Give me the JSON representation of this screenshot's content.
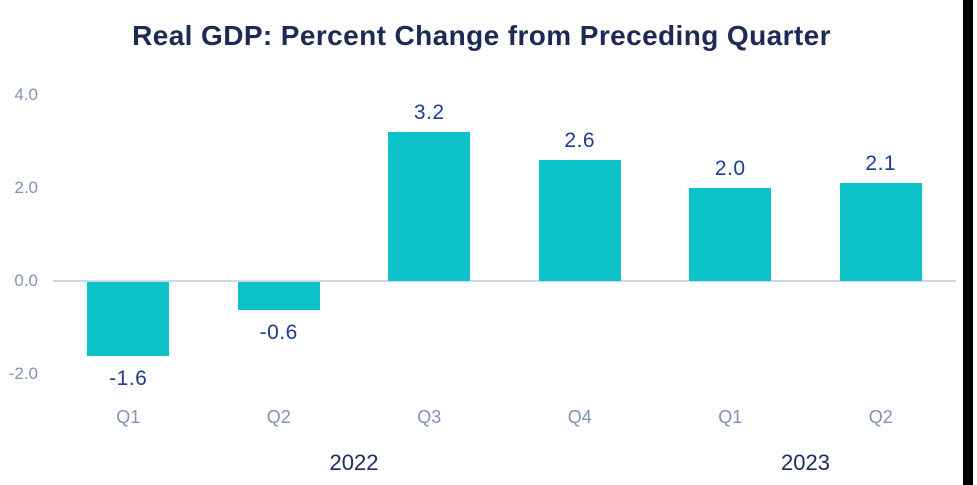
{
  "title": "Real GDP: Percent Change from Preceding Quarter",
  "chart_data": {
    "type": "bar",
    "title": "Real GDP: Percent Change from Preceding Quarter",
    "categories": [
      "Q1",
      "Q2",
      "Q3",
      "Q4",
      "Q1",
      "Q2"
    ],
    "values": [
      -1.6,
      -0.6,
      3.2,
      2.6,
      2.0,
      2.1
    ],
    "value_labels": [
      "-1.6",
      "-0.6",
      "3.2",
      "2.6",
      "2.0",
      "2.1"
    ],
    "year_groups": [
      {
        "label": "2022",
        "span": [
          0,
          3
        ]
      },
      {
        "label": "2023",
        "span": [
          4,
          5
        ]
      }
    ],
    "yticks": [
      "4.0",
      "2.0",
      "0.0",
      "-2.0"
    ],
    "ytick_values": [
      4.0,
      2.0,
      0.0,
      -2.0
    ],
    "ylim": [
      -2.6,
      4.4
    ],
    "grid": false,
    "legend": false,
    "colors": {
      "bar": "#0dc3c9",
      "value_label": "#1c3f8d",
      "axis_text": "#8093b6",
      "title_text": "#1e2a56",
      "year_text": "#1e2d5e",
      "zero_line": "#ccd9ed"
    }
  }
}
